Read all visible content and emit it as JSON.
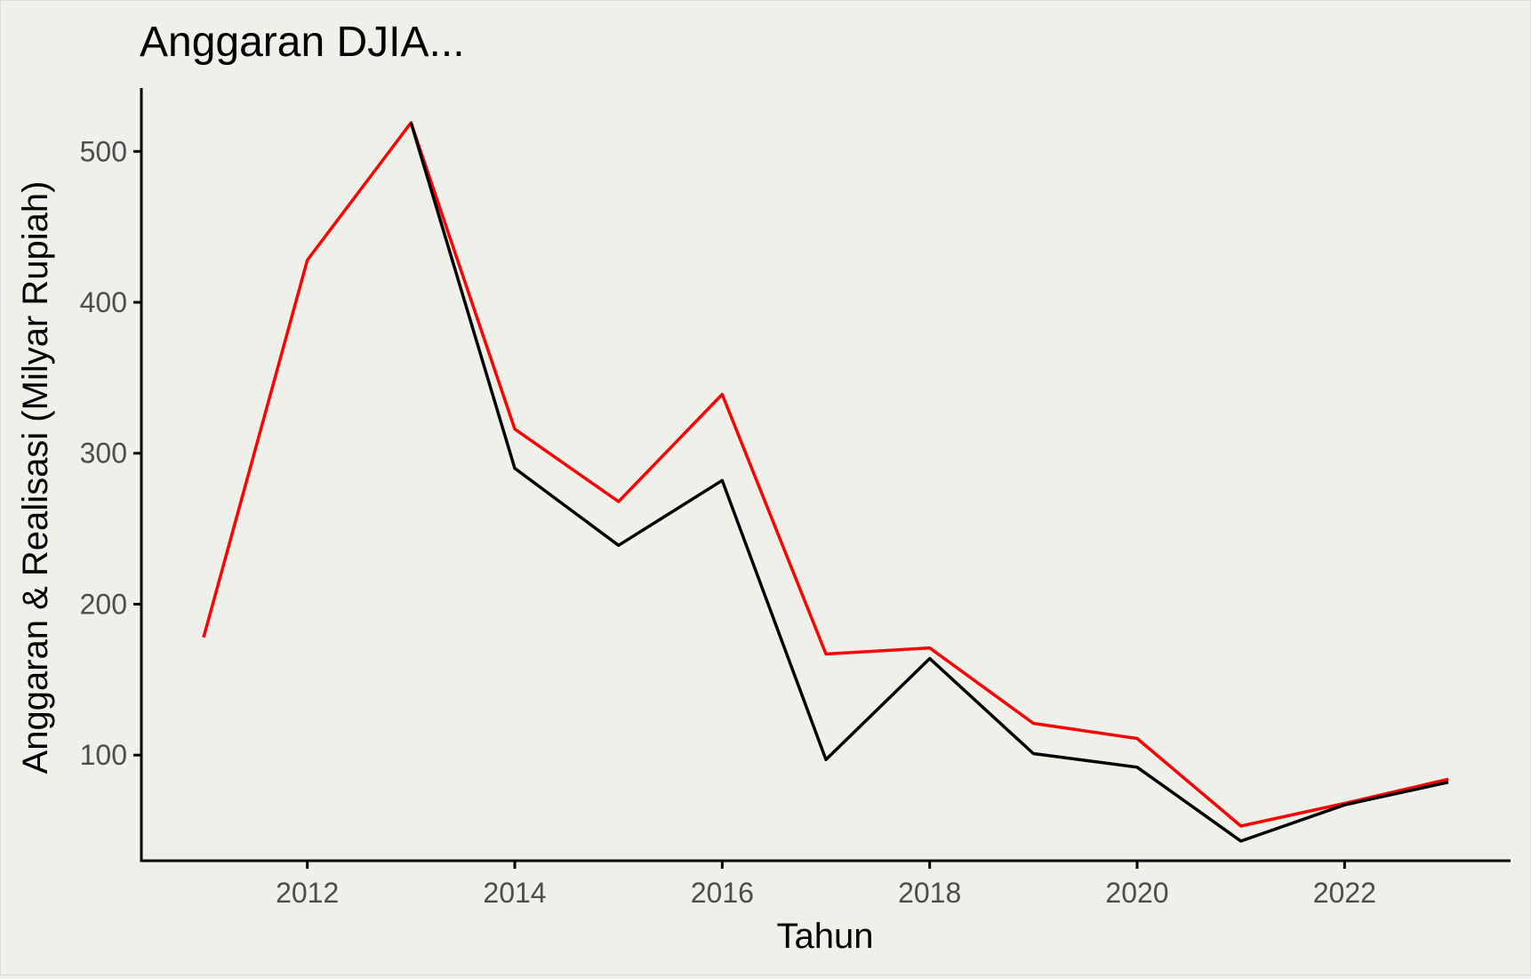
{
  "chart_data": {
    "type": "line",
    "title": "Anggaran DJIA...",
    "xlabel": "Tahun",
    "ylabel": "Anggaran & Realisasi (Milyar Rupiah)",
    "xlim": [
      2010.4,
      2023.6
    ],
    "ylim": [
      30,
      542
    ],
    "x_ticks": [
      2012,
      2014,
      2016,
      2018,
      2020,
      2022
    ],
    "y_ticks": [
      100,
      200,
      300,
      400,
      500
    ],
    "grid": false,
    "legend": "none",
    "series": [
      {
        "color": "#ff0000",
        "points": [
          [
            2011,
            178
          ],
          [
            2012,
            428
          ],
          [
            2013,
            519
          ],
          [
            2014,
            316
          ],
          [
            2015,
            268
          ],
          [
            2016,
            339
          ],
          [
            2017,
            167
          ],
          [
            2018,
            171
          ],
          [
            2019,
            121
          ],
          [
            2020,
            111
          ],
          [
            2021,
            53
          ],
          [
            2022,
            68
          ],
          [
            2023,
            84
          ]
        ]
      },
      {
        "color": "#000000",
        "points": [
          [
            2013,
            519
          ],
          [
            2014,
            290
          ],
          [
            2015,
            239
          ],
          [
            2016,
            282
          ],
          [
            2017,
            97
          ],
          [
            2018,
            164
          ],
          [
            2019,
            101
          ],
          [
            2020,
            92
          ],
          [
            2021,
            43
          ],
          [
            2022,
            67
          ],
          [
            2023,
            82
          ]
        ]
      }
    ]
  }
}
